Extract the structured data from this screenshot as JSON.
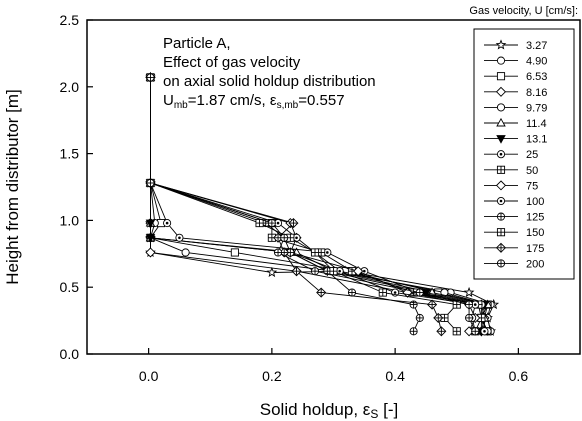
{
  "chart_data": {
    "type": "line",
    "xlabel": "Solid holdup, εs [-]",
    "ylabel": "Height from distributor [m]",
    "xlim": [
      -0.1,
      0.7
    ],
    "ylim": [
      0.0,
      2.5
    ],
    "xticks": [
      0.0,
      0.2,
      0.4,
      0.6
    ],
    "yticks": [
      0.0,
      0.5,
      1.0,
      1.5,
      2.0,
      2.5
    ],
    "xtick_labels": [
      "0.0",
      "0.2",
      "0.4",
      "0.6"
    ],
    "ytick_labels": [
      "0.0",
      "0.5",
      "1.0",
      "1.5",
      "2.0",
      "2.5"
    ],
    "annotation": {
      "line1": "Particle A,",
      "line2": "Effect of gas velocity",
      "line3": "on axial solid holdup distribution",
      "line4_umb": "=1.87 cm/s,",
      "line4_eps": "=0.557"
    },
    "legend_title": "Gas velocity, U [cm/s]:",
    "legend_position": "top-right",
    "series": [
      {
        "name": "3.27",
        "marker": "star",
        "points": [
          [
            0.555,
            0.17
          ],
          [
            0.55,
            0.27
          ],
          [
            0.56,
            0.37
          ],
          [
            0.52,
            0.46
          ],
          [
            0.32,
            0.62
          ],
          [
            0.2,
            0.61
          ],
          [
            0.003,
            0.76
          ],
          [
            0.003,
            0.87
          ],
          [
            0.003,
            0.98
          ],
          [
            0.003,
            1.28
          ],
          [
            0.003,
            2.07
          ]
        ]
      },
      {
        "name": "4.90",
        "marker": "circle",
        "points": [
          [
            0.555,
            0.17
          ],
          [
            0.55,
            0.27
          ],
          [
            0.555,
            0.37
          ],
          [
            0.49,
            0.46
          ],
          [
            0.3,
            0.62
          ],
          [
            0.06,
            0.76
          ],
          [
            0.003,
            0.87
          ],
          [
            0.003,
            0.98
          ],
          [
            0.003,
            1.28
          ],
          [
            0.003,
            2.07
          ]
        ]
      },
      {
        "name": "6.53",
        "marker": "square",
        "points": [
          [
            0.55,
            0.17
          ],
          [
            0.54,
            0.27
          ],
          [
            0.55,
            0.37
          ],
          [
            0.47,
            0.46
          ],
          [
            0.32,
            0.62
          ],
          [
            0.14,
            0.76
          ],
          [
            0.003,
            0.87
          ],
          [
            0.02,
            0.98
          ],
          [
            0.003,
            1.28
          ],
          [
            0.003,
            2.07
          ]
        ]
      },
      {
        "name": "8.16",
        "marker": "diamond",
        "points": [
          [
            0.54,
            0.17
          ],
          [
            0.545,
            0.27
          ],
          [
            0.54,
            0.37
          ],
          [
            0.42,
            0.46
          ],
          [
            0.24,
            0.62
          ],
          [
            0.003,
            0.76
          ],
          [
            0.003,
            0.87
          ],
          [
            0.003,
            0.98
          ],
          [
            0.003,
            1.28
          ],
          [
            0.003,
            2.07
          ]
        ]
      },
      {
        "name": "9.79",
        "marker": "circle",
        "points": [
          [
            0.55,
            0.17
          ],
          [
            0.54,
            0.27
          ],
          [
            0.55,
            0.37
          ],
          [
            0.48,
            0.46
          ],
          [
            0.31,
            0.62
          ],
          [
            0.23,
            0.76
          ],
          [
            0.003,
            0.87
          ],
          [
            0.01,
            0.98
          ],
          [
            0.003,
            1.28
          ],
          [
            0.003,
            2.07
          ]
        ]
      },
      {
        "name": "11.4",
        "marker": "triup",
        "points": [
          [
            0.545,
            0.17
          ],
          [
            0.545,
            0.27
          ],
          [
            0.55,
            0.37
          ],
          [
            0.46,
            0.46
          ],
          [
            0.3,
            0.62
          ],
          [
            0.24,
            0.76
          ],
          [
            0.003,
            0.87
          ],
          [
            0.003,
            0.98
          ],
          [
            0.003,
            1.28
          ],
          [
            0.003,
            2.07
          ]
        ]
      },
      {
        "name": "13.1",
        "marker": "tridown",
        "points": [
          [
            0.54,
            0.17
          ],
          [
            0.54,
            0.27
          ],
          [
            0.545,
            0.37
          ],
          [
            0.45,
            0.46
          ],
          [
            0.29,
            0.62
          ],
          [
            0.23,
            0.76
          ],
          [
            0.003,
            0.87
          ],
          [
            0.003,
            0.98
          ],
          [
            0.003,
            1.28
          ],
          [
            0.003,
            2.07
          ]
        ]
      },
      {
        "name": "25",
        "marker": "circdot",
        "points": [
          [
            0.545,
            0.17
          ],
          [
            0.54,
            0.27
          ],
          [
            0.54,
            0.37
          ],
          [
            0.44,
            0.46
          ],
          [
            0.35,
            0.62
          ],
          [
            0.29,
            0.76
          ],
          [
            0.05,
            0.87
          ],
          [
            0.03,
            0.98
          ],
          [
            0.003,
            1.28
          ],
          [
            0.003,
            2.07
          ]
        ]
      },
      {
        "name": "50",
        "marker": "sqplus",
        "points": [
          [
            0.53,
            0.17
          ],
          [
            0.54,
            0.27
          ],
          [
            0.535,
            0.37
          ],
          [
            0.43,
            0.46
          ],
          [
            0.33,
            0.62
          ],
          [
            0.28,
            0.76
          ],
          [
            0.2,
            0.87
          ],
          [
            0.2,
            0.98
          ],
          [
            0.003,
            1.28
          ],
          [
            0.003,
            2.07
          ]
        ]
      },
      {
        "name": "75",
        "marker": "diamond",
        "points": [
          [
            0.52,
            0.17
          ],
          [
            0.53,
            0.27
          ],
          [
            0.52,
            0.37
          ],
          [
            0.42,
            0.46
          ],
          [
            0.34,
            0.62
          ],
          [
            0.23,
            0.76
          ],
          [
            0.24,
            0.87
          ],
          [
            0.23,
            0.98
          ],
          [
            0.003,
            1.28
          ],
          [
            0.003,
            2.07
          ]
        ]
      },
      {
        "name": "100",
        "marker": "circdot",
        "points": [
          [
            0.53,
            0.17
          ],
          [
            0.525,
            0.27
          ],
          [
            0.53,
            0.37
          ],
          [
            0.4,
            0.46
          ],
          [
            0.31,
            0.62
          ],
          [
            0.27,
            0.76
          ],
          [
            0.24,
            0.87
          ],
          [
            0.21,
            0.98
          ],
          [
            0.003,
            1.28
          ],
          [
            0.003,
            2.07
          ]
        ]
      },
      {
        "name": "125",
        "marker": "circplus",
        "points": [
          [
            0.43,
            0.17
          ],
          [
            0.44,
            0.27
          ],
          [
            0.43,
            0.37
          ],
          [
            0.33,
            0.46
          ],
          [
            0.29,
            0.62
          ],
          [
            0.23,
            0.76
          ],
          [
            0.22,
            0.87
          ],
          [
            0.19,
            0.98
          ],
          [
            0.003,
            1.28
          ],
          [
            0.003,
            2.07
          ]
        ]
      },
      {
        "name": "150",
        "marker": "sqplus",
        "points": [
          [
            0.5,
            0.17
          ],
          [
            0.48,
            0.27
          ],
          [
            0.5,
            0.37
          ],
          [
            0.38,
            0.46
          ],
          [
            0.3,
            0.62
          ],
          [
            0.27,
            0.76
          ],
          [
            0.23,
            0.87
          ],
          [
            0.18,
            0.98
          ],
          [
            0.003,
            1.28
          ],
          [
            0.003,
            2.07
          ]
        ]
      },
      {
        "name": "175",
        "marker": "diamplus",
        "points": [
          [
            0.475,
            0.17
          ],
          [
            0.47,
            0.27
          ],
          [
            0.46,
            0.37
          ],
          [
            0.28,
            0.46
          ],
          [
            0.24,
            0.62
          ],
          [
            0.22,
            0.76
          ],
          [
            0.21,
            0.87
          ],
          [
            0.235,
            0.98
          ],
          [
            0.003,
            1.28
          ],
          [
            0.003,
            2.07
          ]
        ]
      },
      {
        "name": "200",
        "marker": "circplus",
        "points": [
          [
            0.53,
            0.17
          ],
          [
            0.52,
            0.27
          ],
          [
            0.52,
            0.37
          ],
          [
            0.44,
            0.46
          ],
          [
            0.27,
            0.62
          ],
          [
            0.21,
            0.76
          ],
          [
            0.22,
            0.87
          ],
          [
            0.2,
            0.98
          ],
          [
            0.003,
            1.28
          ],
          [
            0.003,
            2.07
          ]
        ]
      }
    ]
  }
}
